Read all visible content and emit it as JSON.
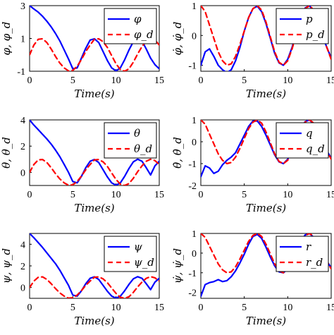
{
  "colors": {
    "actual": "#0000ff",
    "desired": "#ff0000"
  },
  "chart_data": [
    {
      "type": "line",
      "xlabel": "Time(s)",
      "ylabel": "φ, φ_d",
      "xlim": [
        0,
        15
      ],
      "ylim": [
        -1,
        3
      ],
      "xticks": [
        "0",
        "5",
        "10",
        "15"
      ],
      "yticks": [
        "-1",
        "1",
        "3"
      ],
      "legend_position": "top-right",
      "x": [
        0,
        0.5,
        1,
        1.5,
        2,
        2.5,
        3,
        3.5,
        4,
        4.5,
        5,
        5.5,
        6,
        6.5,
        7,
        7.5,
        8,
        8.5,
        9,
        9.5,
        10,
        10.5,
        11,
        11.5,
        12,
        12.5,
        13,
        13.5,
        14,
        14.5,
        15
      ],
      "series": [
        {
          "name": "φ",
          "style": "solid",
          "color": "#0000ff",
          "values": [
            3.0,
            2.8,
            2.6,
            2.35,
            2.05,
            1.7,
            1.3,
            0.85,
            0.3,
            -0.25,
            -0.85,
            -0.8,
            -0.2,
            0.4,
            0.9,
            0.98,
            0.75,
            0.2,
            -0.35,
            -0.8,
            -0.98,
            -0.8,
            -0.3,
            0.3,
            0.8,
            1.0,
            0.85,
            0.35,
            -0.2,
            -0.6,
            -0.85
          ]
        },
        {
          "name": "φ_d",
          "style": "dashed",
          "color": "#ff0000",
          "values": [
            0.0,
            0.6,
            0.95,
            0.98,
            0.75,
            0.35,
            -0.1,
            -0.5,
            -0.8,
            -0.98,
            -0.95,
            -0.7,
            -0.28,
            0.2,
            0.6,
            0.95,
            0.98,
            0.8,
            0.45,
            -0.05,
            -0.55,
            -0.9,
            -1.0,
            -0.85,
            -0.45,
            0.05,
            0.5,
            0.85,
            1.0,
            0.9,
            0.6
          ]
        }
      ]
    },
    {
      "type": "line",
      "xlabel": "Time(s)",
      "ylabel": "φ̇, φ̇_d",
      "xlim": [
        0,
        15
      ],
      "ylim": [
        -1.2,
        1
      ],
      "xticks": [
        "0",
        "5",
        "10",
        "15"
      ],
      "yticks": [
        "-1",
        "0",
        "1"
      ],
      "legend_position": "top-right",
      "x": [
        0,
        0.5,
        1,
        1.5,
        2,
        2.5,
        3,
        3.5,
        4,
        4.5,
        5,
        5.5,
        6,
        6.5,
        7,
        7.5,
        8,
        8.5,
        9,
        9.5,
        10,
        10.5,
        11,
        11.5,
        12,
        12.5,
        13,
        13.5,
        14,
        14.5,
        15
      ],
      "series": [
        {
          "name": "p",
          "style": "solid",
          "color": "#0000ff",
          "values": [
            -1.0,
            -0.55,
            -0.45,
            -0.7,
            -1.0,
            -1.15,
            -1.25,
            -1.15,
            -0.85,
            -0.4,
            0.15,
            0.6,
            0.9,
            0.98,
            0.8,
            0.4,
            -0.1,
            -0.6,
            -0.92,
            -1.0,
            -0.8,
            -0.4,
            0.1,
            0.6,
            0.92,
            1.0,
            0.8,
            0.45,
            0.0,
            -0.4,
            -0.75
          ]
        },
        {
          "name": "p_d",
          "style": "dashed",
          "color": "#ff0000",
          "values": [
            1.0,
            0.8,
            0.35,
            -0.1,
            -0.55,
            -0.85,
            -1.0,
            -0.95,
            -0.7,
            -0.3,
            0.15,
            0.6,
            0.9,
            1.0,
            0.85,
            0.45,
            -0.05,
            -0.55,
            -0.9,
            -1.0,
            -0.85,
            -0.45,
            0.05,
            0.55,
            0.9,
            1.0,
            0.85,
            0.5,
            0.05,
            -0.4,
            -0.8
          ]
        }
      ]
    },
    {
      "type": "line",
      "xlabel": "Time(s)",
      "ylabel": "θ, θ_d",
      "xlim": [
        0,
        15
      ],
      "ylim": [
        -1,
        4
      ],
      "xticks": [
        "0",
        "5",
        "10",
        "15"
      ],
      "yticks": [
        "0",
        "2",
        "4"
      ],
      "legend_position": "top-right",
      "x": [
        0,
        0.5,
        1,
        1.5,
        2,
        2.5,
        3,
        3.5,
        4,
        4.5,
        5,
        5.5,
        6,
        6.5,
        7,
        7.5,
        8,
        8.5,
        9,
        9.5,
        10,
        10.5,
        11,
        11.5,
        12,
        12.5,
        13,
        13.5,
        14,
        14.5,
        15
      ],
      "series": [
        {
          "name": "θ",
          "style": "solid",
          "color": "#0000ff",
          "values": [
            4.0,
            3.6,
            3.25,
            2.9,
            2.55,
            2.15,
            1.7,
            1.2,
            0.6,
            0.0,
            -0.7,
            -0.8,
            -0.3,
            0.35,
            0.85,
            0.98,
            0.75,
            0.2,
            -0.35,
            -0.8,
            -0.98,
            -0.8,
            -0.3,
            0.3,
            0.8,
            1.0,
            0.85,
            0.35,
            -0.2,
            0.5,
            0.85
          ]
        },
        {
          "name": "θ_d",
          "style": "dashed",
          "color": "#ff0000",
          "values": [
            0.0,
            0.6,
            0.95,
            0.98,
            0.75,
            0.35,
            -0.1,
            -0.5,
            -0.8,
            -0.98,
            -0.95,
            -0.7,
            -0.28,
            0.2,
            0.6,
            0.95,
            0.98,
            0.8,
            0.45,
            -0.05,
            -0.55,
            -0.9,
            -1.0,
            -0.85,
            -0.45,
            0.05,
            0.5,
            0.85,
            1.0,
            0.9,
            0.6
          ]
        }
      ]
    },
    {
      "type": "line",
      "xlabel": "Time(s)",
      "ylabel": "θ̇, θ̇_d",
      "xlim": [
        0,
        15
      ],
      "ylim": [
        -2,
        1
      ],
      "xticks": [
        "0",
        "5",
        "10",
        "15"
      ],
      "yticks": [
        "-2",
        "-1",
        "0",
        "1"
      ],
      "legend_position": "top-right",
      "x": [
        0,
        0.5,
        1,
        1.5,
        2,
        2.5,
        3,
        3.5,
        4,
        4.5,
        5,
        5.5,
        6,
        6.5,
        7,
        7.5,
        8,
        8.5,
        9,
        9.5,
        10,
        10.5,
        11,
        11.5,
        12,
        12.5,
        13,
        13.5,
        14,
        14.5,
        15
      ],
      "series": [
        {
          "name": "q",
          "style": "solid",
          "color": "#0000ff",
          "values": [
            -1.6,
            -1.1,
            -1.2,
            -1.45,
            -1.35,
            -1.05,
            -0.85,
            -0.7,
            -0.5,
            -0.1,
            0.3,
            0.7,
            0.95,
            0.95,
            0.7,
            0.3,
            -0.15,
            -0.6,
            -0.92,
            -1.0,
            -0.8,
            -0.4,
            0.1,
            0.6,
            0.92,
            1.0,
            0.8,
            0.45,
            0.0,
            -0.4,
            -0.75
          ]
        },
        {
          "name": "q_d",
          "style": "dashed",
          "color": "#ff0000",
          "values": [
            1.0,
            0.8,
            0.35,
            -0.1,
            -0.55,
            -0.85,
            -1.0,
            -0.95,
            -0.7,
            -0.3,
            0.15,
            0.6,
            0.9,
            1.0,
            0.85,
            0.45,
            -0.05,
            -0.55,
            -0.9,
            -1.0,
            -0.85,
            -0.45,
            0.05,
            0.55,
            0.9,
            1.0,
            0.85,
            0.5,
            0.05,
            -0.4,
            -0.8
          ]
        }
      ]
    },
    {
      "type": "line",
      "xlabel": "Time(s)",
      "ylabel": "ψ, ψ_d",
      "xlim": [
        0,
        15
      ],
      "ylim": [
        -1,
        5
      ],
      "xticks": [
        "0",
        "5",
        "10",
        "15"
      ],
      "yticks": [
        "0",
        "2",
        "4"
      ],
      "legend_position": "top-right",
      "x": [
        0,
        0.5,
        1,
        1.5,
        2,
        2.5,
        3,
        3.5,
        4,
        4.5,
        5,
        5.5,
        6,
        6.5,
        7,
        7.5,
        8,
        8.5,
        9,
        9.5,
        10,
        10.5,
        11,
        11.5,
        12,
        12.5,
        13,
        13.5,
        14,
        14.5,
        15
      ],
      "series": [
        {
          "name": "ψ",
          "style": "solid",
          "color": "#0000ff",
          "values": [
            5.0,
            4.6,
            4.15,
            3.7,
            3.2,
            2.7,
            2.2,
            1.6,
            0.9,
            0.2,
            -0.7,
            -0.8,
            -0.3,
            0.35,
            0.85,
            0.98,
            0.75,
            0.2,
            -0.35,
            -0.8,
            -0.98,
            -0.8,
            -0.3,
            0.3,
            0.8,
            1.0,
            0.85,
            0.35,
            -0.2,
            0.5,
            0.85
          ]
        },
        {
          "name": "ψ_d",
          "style": "dashed",
          "color": "#ff0000",
          "values": [
            0.0,
            0.6,
            0.95,
            0.98,
            0.75,
            0.35,
            -0.1,
            -0.5,
            -0.8,
            -0.98,
            -0.95,
            -0.7,
            -0.28,
            0.2,
            0.6,
            0.95,
            0.98,
            0.8,
            0.45,
            -0.05,
            -0.55,
            -0.9,
            -1.0,
            -0.85,
            -0.45,
            0.05,
            0.5,
            0.85,
            1.0,
            0.9,
            0.6
          ]
        }
      ]
    },
    {
      "type": "line",
      "xlabel": "Time(s)",
      "ylabel": "ψ̇, ψ̇_d",
      "xlim": [
        0,
        15
      ],
      "ylim": [
        -2.3,
        1
      ],
      "xticks": [
        "0",
        "5",
        "10",
        "15"
      ],
      "yticks": [
        "-2",
        "-1",
        "0",
        "1"
      ],
      "legend_position": "top-right",
      "x": [
        0,
        0.5,
        1,
        1.5,
        2,
        2.5,
        3,
        3.5,
        4,
        4.5,
        5,
        5.5,
        6,
        6.5,
        7,
        7.5,
        8,
        8.5,
        9,
        9.5,
        10,
        10.5,
        11,
        11.5,
        12,
        12.5,
        13,
        13.5,
        14,
        14.5,
        15
      ],
      "series": [
        {
          "name": "r",
          "style": "solid",
          "color": "#0000ff",
          "values": [
            -2.2,
            -1.6,
            -1.5,
            -1.45,
            -1.35,
            -1.45,
            -1.4,
            -1.2,
            -0.9,
            -0.5,
            -0.05,
            0.45,
            0.85,
            0.95,
            0.75,
            0.3,
            -0.2,
            -0.65,
            -0.95,
            -1.0,
            -0.8,
            -0.4,
            0.1,
            0.6,
            0.92,
            1.0,
            0.8,
            0.45,
            0.0,
            -0.4,
            -0.75
          ]
        },
        {
          "name": "r_d",
          "style": "dashed",
          "color": "#ff0000",
          "values": [
            1.0,
            0.8,
            0.35,
            -0.1,
            -0.55,
            -0.85,
            -1.0,
            -0.95,
            -0.7,
            -0.3,
            0.15,
            0.6,
            0.9,
            1.0,
            0.85,
            0.45,
            -0.05,
            -0.55,
            -0.9,
            -1.0,
            -0.85,
            -0.45,
            0.05,
            0.55,
            0.9,
            1.0,
            0.85,
            0.5,
            0.05,
            -0.4,
            -0.8
          ]
        }
      ]
    }
  ]
}
